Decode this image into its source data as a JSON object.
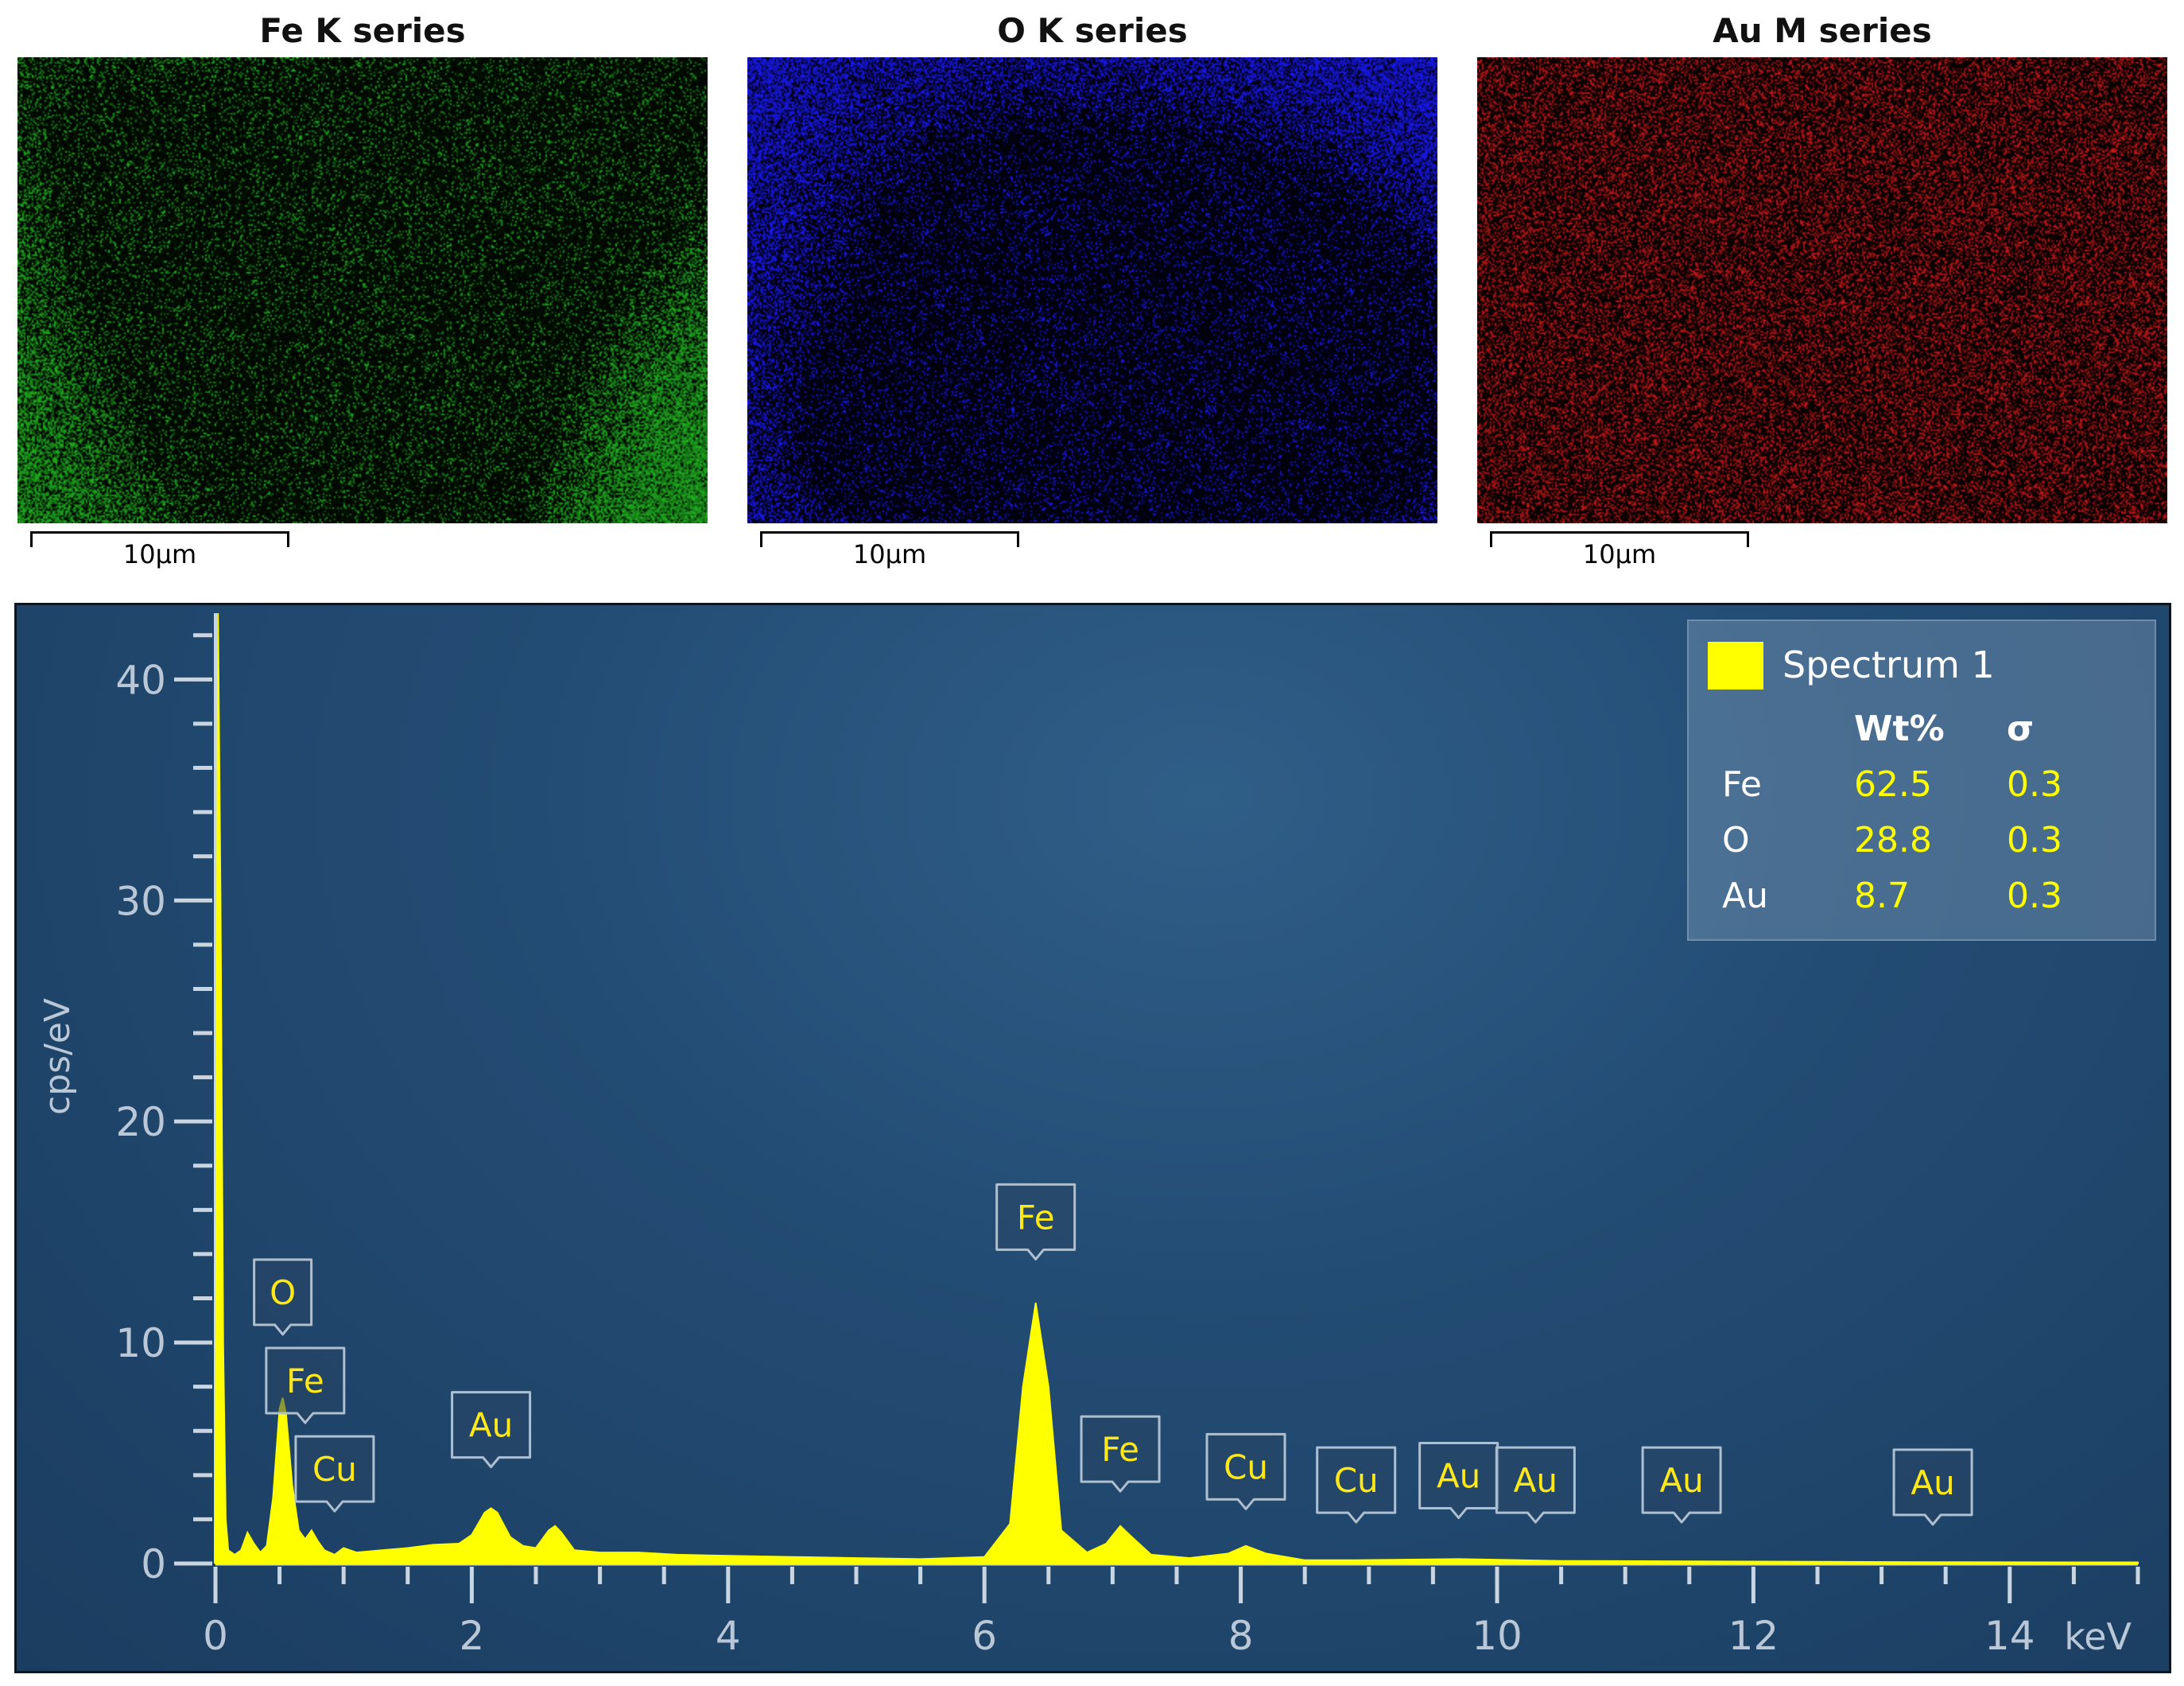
{
  "maps": [
    {
      "title": "Fe K series",
      "color": "#22b822",
      "scale_label": "10µm"
    },
    {
      "title": "O K series",
      "color": "#1a1aff",
      "scale_label": "10µm"
    },
    {
      "title": "Au M series",
      "color": "#d01a1a",
      "scale_label": "10µm"
    }
  ],
  "legend": {
    "name": "Spectrum 1",
    "swatch_color": "#ffff00",
    "headers": [
      "Wt%",
      "σ"
    ],
    "rows": [
      {
        "element": "Fe",
        "wt": "62.5",
        "sigma": "0.3"
      },
      {
        "element": "O",
        "wt": "28.8",
        "sigma": "0.3"
      },
      {
        "element": "Au",
        "wt": "8.7",
        "sigma": "0.3"
      }
    ]
  },
  "chart_data": {
    "type": "area",
    "title": "",
    "xlabel": "keV",
    "ylabel": "cps/eV",
    "xlim": [
      0,
      15
    ],
    "ylim": [
      0,
      43
    ],
    "x_ticks": [
      0,
      2,
      4,
      6,
      8,
      10,
      12,
      14
    ],
    "y_ticks": [
      0,
      10,
      20,
      30,
      40
    ],
    "grid": false,
    "series": [
      {
        "name": "Spectrum 1",
        "color": "#ffff00",
        "x": [
          0.0,
          0.02,
          0.04,
          0.06,
          0.08,
          0.1,
          0.15,
          0.2,
          0.25,
          0.3,
          0.35,
          0.4,
          0.45,
          0.5,
          0.525,
          0.55,
          0.6,
          0.65,
          0.7,
          0.75,
          0.8,
          0.85,
          0.93,
          1.0,
          1.1,
          1.3,
          1.5,
          1.7,
          1.9,
          2.0,
          2.1,
          2.15,
          2.2,
          2.3,
          2.4,
          2.5,
          2.6,
          2.65,
          2.7,
          2.8,
          3.0,
          3.3,
          3.6,
          4.0,
          4.5,
          5.0,
          5.5,
          6.0,
          6.2,
          6.3,
          6.4,
          6.5,
          6.6,
          6.8,
          6.95,
          7.06,
          7.15,
          7.3,
          7.6,
          7.9,
          8.04,
          8.2,
          8.5,
          8.9,
          9.7,
          10.5,
          11.5,
          12.5,
          13.5,
          15.0
        ],
        "y": [
          0.3,
          43.0,
          30.0,
          10.0,
          2.0,
          0.6,
          0.4,
          0.6,
          1.4,
          0.9,
          0.5,
          0.8,
          3.0,
          7.0,
          7.5,
          6.8,
          3.5,
          1.5,
          1.1,
          1.5,
          1.0,
          0.6,
          0.4,
          0.7,
          0.5,
          0.6,
          0.7,
          0.85,
          0.9,
          1.3,
          2.3,
          2.5,
          2.3,
          1.2,
          0.8,
          0.7,
          1.5,
          1.7,
          1.4,
          0.6,
          0.5,
          0.5,
          0.4,
          0.35,
          0.3,
          0.25,
          0.2,
          0.3,
          1.8,
          8.0,
          11.8,
          8.0,
          1.5,
          0.5,
          0.9,
          1.7,
          1.2,
          0.4,
          0.25,
          0.45,
          0.8,
          0.45,
          0.15,
          0.15,
          0.2,
          0.12,
          0.1,
          0.08,
          0.06,
          0.05
        ]
      }
    ],
    "peak_labels": [
      {
        "text": "O",
        "x": 0.525,
        "y": 10.8
      },
      {
        "text": "Fe",
        "x": 0.7,
        "y": 6.8
      },
      {
        "text": "Cu",
        "x": 0.93,
        "y": 2.8
      },
      {
        "text": "Au",
        "x": 2.15,
        "y": 4.8
      },
      {
        "text": "Fe",
        "x": 6.4,
        "y": 14.2
      },
      {
        "text": "Fe",
        "x": 7.06,
        "y": 3.7
      },
      {
        "text": "Cu",
        "x": 8.04,
        "y": 2.9
      },
      {
        "text": "Cu",
        "x": 8.9,
        "y": 2.3
      },
      {
        "text": "Au",
        "x": 9.7,
        "y": 2.5
      },
      {
        "text": "Au",
        "x": 10.3,
        "y": 2.3
      },
      {
        "text": "Au",
        "x": 11.44,
        "y": 2.3
      },
      {
        "text": "Au",
        "x": 13.4,
        "y": 2.2
      }
    ]
  }
}
